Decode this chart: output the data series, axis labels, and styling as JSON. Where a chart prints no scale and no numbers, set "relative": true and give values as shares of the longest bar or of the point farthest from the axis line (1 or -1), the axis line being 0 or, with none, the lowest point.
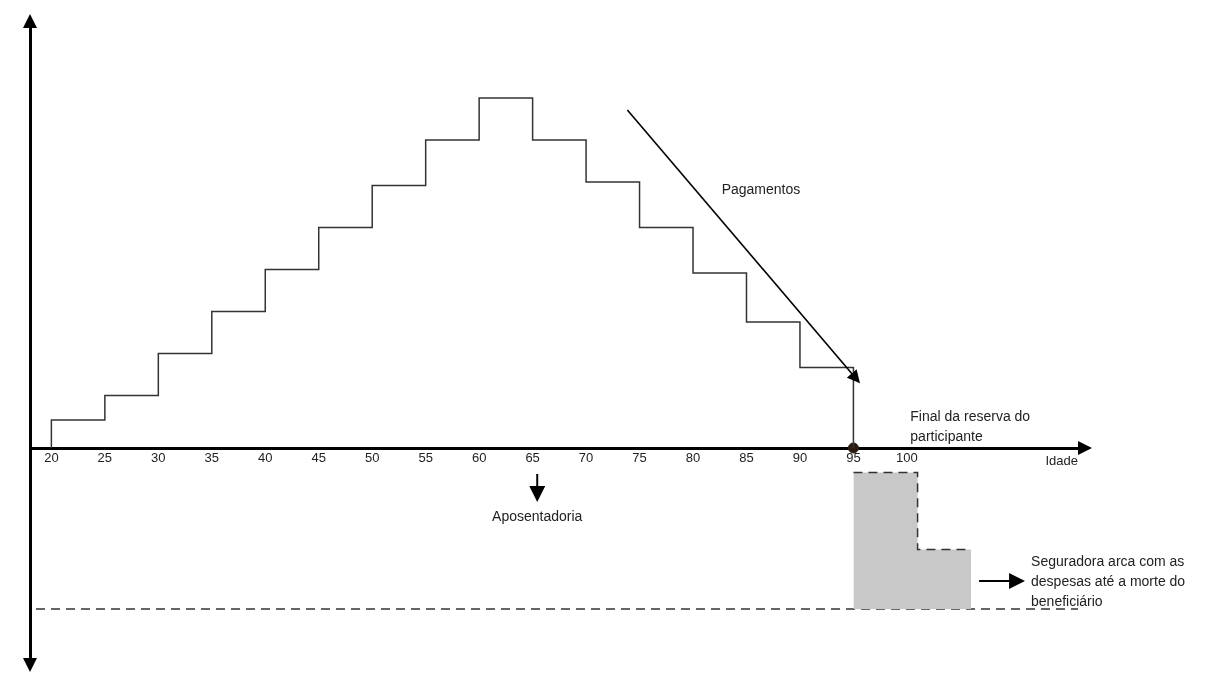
{
  "chart_data": {
    "type": "step",
    "relative": true,
    "xlabel": "Idade",
    "xlim": [
      18,
      116
    ],
    "xticks": [
      20,
      25,
      30,
      35,
      40,
      45,
      50,
      55,
      60,
      65,
      70,
      75,
      80,
      85,
      90,
      95,
      100
    ],
    "series": [
      {
        "color": "#333333",
        "x": [
          20,
          20,
          25,
          30,
          35,
          40,
          45,
          50,
          55,
          60,
          65,
          70,
          75,
          80,
          85,
          90,
          95
        ],
        "values": [
          0,
          0.08,
          0.15,
          0.27,
          0.39,
          0.51,
          0.63,
          0.75,
          0.88,
          1,
          0.88,
          0.76,
          0.63,
          0.5,
          0.36,
          0.23,
          0
        ]
      },
      {
        "type": "area",
        "color": "#c8c8c8",
        "line_style": "dashed",
        "x": [
          95,
          101,
          101,
          106
        ],
        "values": [
          -0.07,
          -0.07,
          -0.29,
          -0.29
        ]
      },
      {
        "type": "scatter",
        "color": "#2a1a10",
        "marker": "circle",
        "x": [
          95
        ],
        "values": [
          0
        ]
      }
    ],
    "ref_lines": [
      {
        "axis": "y",
        "value": -0.46,
        "line_style": "dashed",
        "color": "#333333"
      }
    ],
    "annotations": [
      "Pagamentos",
      "Final da reserva do participante",
      "Aposentadoria",
      {
        "text": "Seguradora arca com as despesas até a morte do beneficiário",
        "x": 106,
        "y": -0.38
      }
    ]
  }
}
